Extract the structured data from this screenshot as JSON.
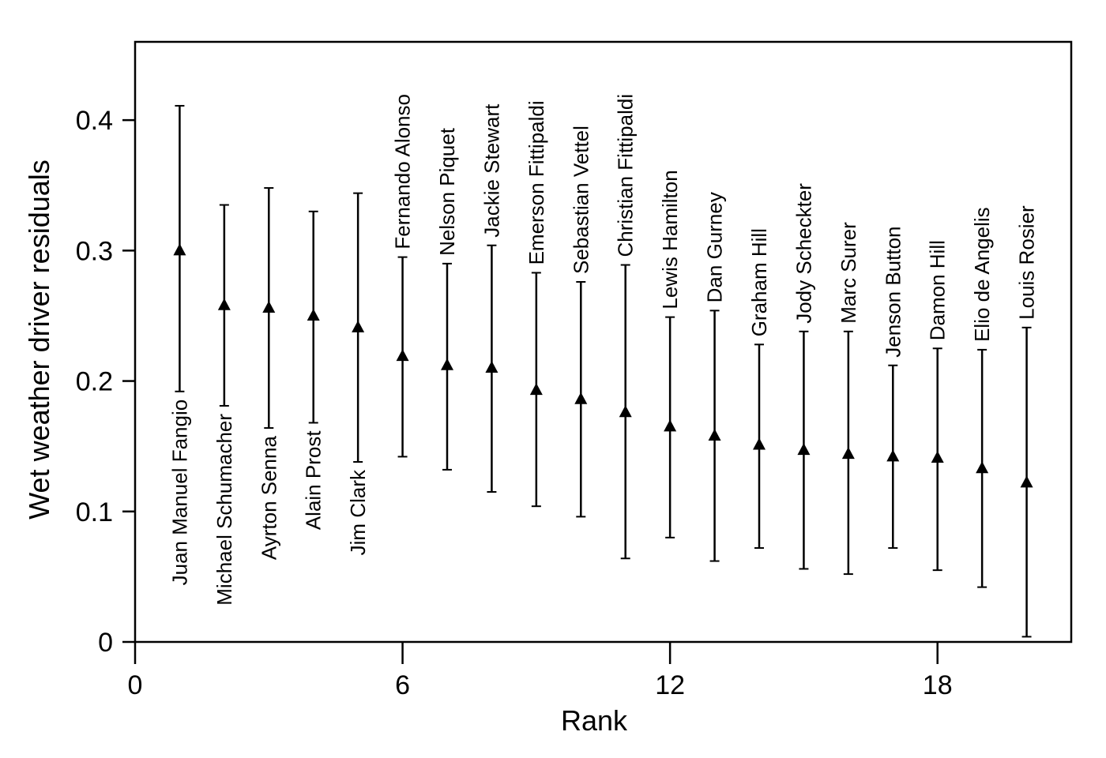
{
  "chart_data": {
    "type": "errorbar",
    "x_label": "Rank",
    "y_label": "Wet weather driver residuals",
    "x": [
      1,
      2,
      3,
      4,
      5,
      6,
      7,
      8,
      9,
      10,
      11,
      12,
      13,
      14,
      15,
      16,
      17,
      18,
      19,
      20
    ],
    "categories": [
      "Juan Manuel Fangio",
      "Michael Schumacher",
      "Ayrton Senna",
      "Alain Prost",
      "Jim Clark",
      "Fernando Alonso",
      "Nelson Piquet",
      "Jackie Stewart",
      "Emerson Fittipaldi",
      "Sebastian Vettel",
      "Christian Fittipaldi",
      "Lewis Hamilton",
      "Dan Gurney",
      "Graham Hill",
      "Jody Scheckter",
      "Marc Surer",
      "Jenson Button",
      "Damon Hill",
      "Elio de Angelis",
      "Louis Rosier"
    ],
    "values": [
      0.3,
      0.258,
      0.256,
      0.25,
      0.241,
      0.219,
      0.212,
      0.21,
      0.193,
      0.186,
      0.176,
      0.165,
      0.158,
      0.151,
      0.147,
      0.144,
      0.142,
      0.141,
      0.133,
      0.122
    ],
    "lower": [
      0.192,
      0.181,
      0.164,
      0.168,
      0.138,
      0.142,
      0.132,
      0.115,
      0.104,
      0.096,
      0.064,
      0.08,
      0.062,
      0.072,
      0.056,
      0.052,
      0.072,
      0.055,
      0.042,
      0.004
    ],
    "upper": [
      0.411,
      0.335,
      0.348,
      0.33,
      0.344,
      0.295,
      0.29,
      0.304,
      0.283,
      0.276,
      0.289,
      0.249,
      0.254,
      0.228,
      0.238,
      0.238,
      0.212,
      0.225,
      0.224,
      0.241
    ],
    "color": "#000000",
    "xlim": [
      0,
      21
    ],
    "ylim": [
      0,
      0.46
    ],
    "xticks": [
      0,
      6,
      12,
      18
    ],
    "yticks": [
      0,
      0.1,
      0.2,
      0.3,
      0.4
    ]
  }
}
